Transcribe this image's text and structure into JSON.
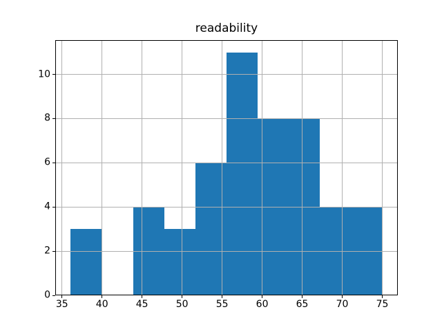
{
  "chart_data": {
    "type": "bar",
    "subtype": "histogram",
    "title": "readability",
    "xlabel": "",
    "ylabel": "",
    "bin_edges": [
      36.1,
      39.99,
      43.88,
      47.77,
      51.66,
      55.55,
      59.44,
      63.33,
      67.22,
      71.11,
      75.0
    ],
    "counts": [
      3,
      0,
      4,
      3,
      6,
      11,
      8,
      8,
      4,
      4
    ],
    "x_ticks": [
      35,
      40,
      45,
      50,
      55,
      60,
      65,
      70,
      75
    ],
    "y_ticks": [
      0,
      2,
      4,
      6,
      8,
      10
    ],
    "xlim": [
      34.16,
      76.94
    ],
    "ylim": [
      0,
      11.55
    ],
    "bar_color": "#1f77b4",
    "grid_color": "#b0b0b0",
    "axis_color": "#000000",
    "background_color": "#ffffff",
    "grid": true,
    "legend": false
  }
}
